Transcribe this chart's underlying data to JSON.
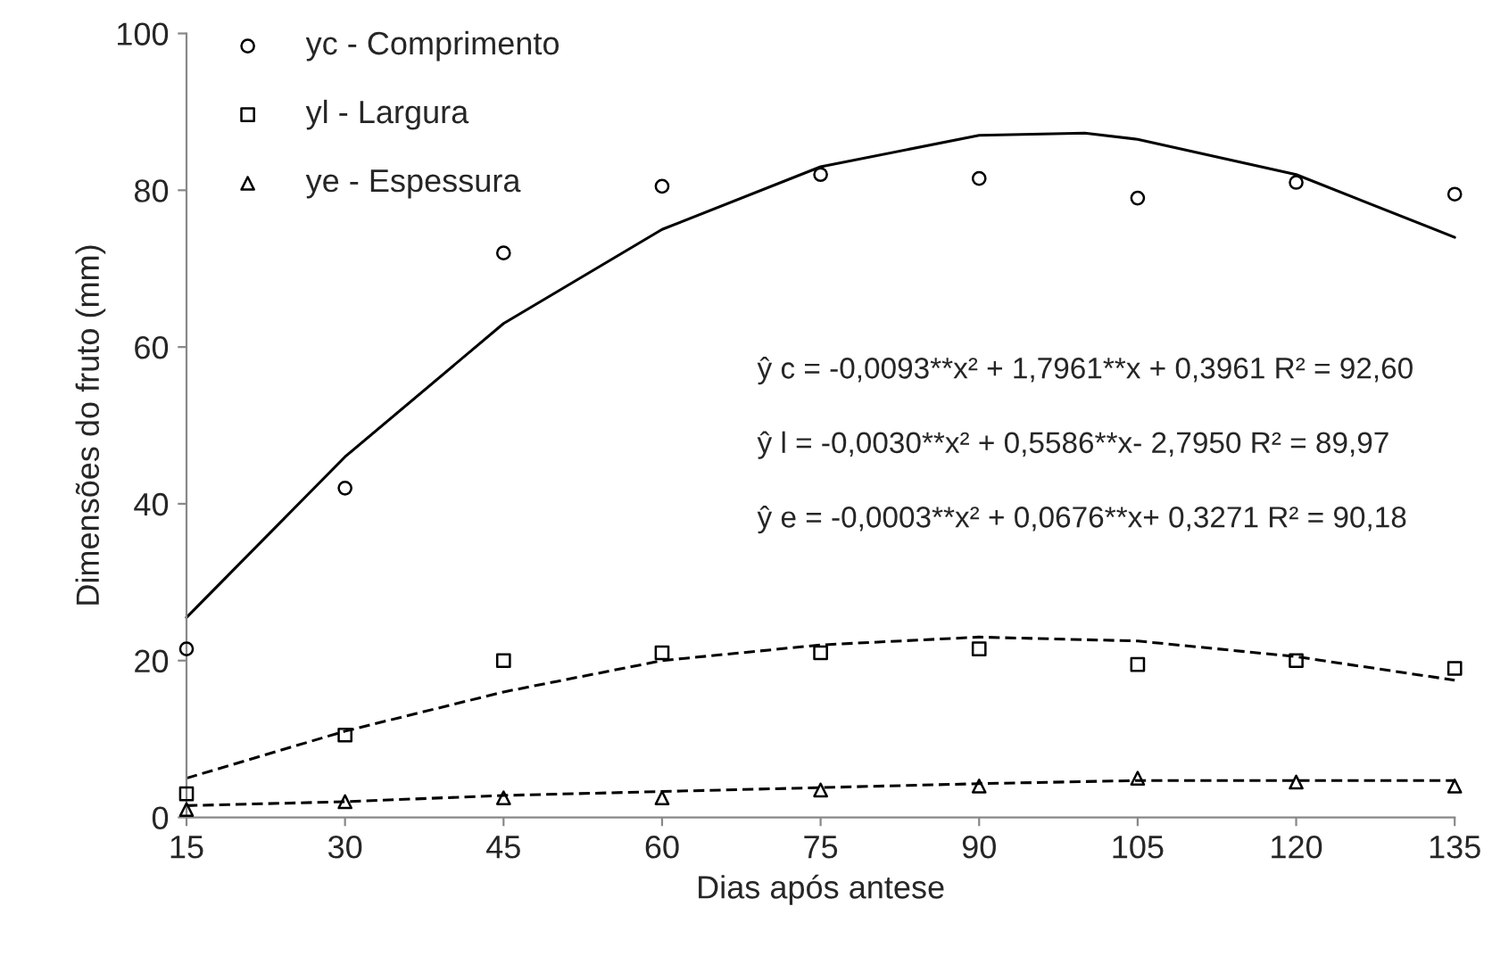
{
  "chart_data": {
    "type": "scatter",
    "xlabel": "Dias após antese",
    "ylabel": "Dimensões do fruto (mm)",
    "x": [
      15,
      30,
      45,
      60,
      75,
      90,
      105,
      120,
      135
    ],
    "series": [
      {
        "name": "yc - Comprimento",
        "marker": "circle",
        "color": "#000000",
        "values": [
          21.5,
          42,
          72,
          80.5,
          82,
          81.5,
          79,
          81,
          79.5
        ]
      },
      {
        "name": "yl - Largura",
        "marker": "square",
        "color": "#000000",
        "values": [
          3,
          10.5,
          20,
          21,
          21,
          21.5,
          19.5,
          20,
          19
        ]
      },
      {
        "name": "ye - Espessura",
        "marker": "triangle",
        "color": "#000000",
        "values": [
          1,
          2,
          2.5,
          2.5,
          3.5,
          4,
          5,
          4.5,
          4
        ]
      },
      {
        "type": "line",
        "line_style": "solid",
        "color": "#000000",
        "x": [
          15,
          30,
          45,
          60,
          75,
          90,
          100,
          105,
          120,
          135
        ],
        "values": [
          25.5,
          46,
          63,
          75,
          83,
          87,
          87.3,
          86.5,
          82,
          74
        ]
      },
      {
        "type": "line",
        "line_style": "dashed",
        "color": "#000000",
        "x": [
          15,
          30,
          45,
          60,
          75,
          90,
          105,
          120,
          135
        ],
        "values": [
          5,
          11,
          16,
          20,
          22,
          23,
          22.5,
          20.5,
          17.5
        ]
      },
      {
        "type": "line",
        "line_style": "dashed",
        "color": "#000000",
        "x": [
          15,
          30,
          45,
          60,
          75,
          90,
          105,
          120,
          135
        ],
        "values": [
          1.5,
          2,
          2.8,
          3.3,
          3.8,
          4.3,
          4.7,
          4.7,
          4.7
        ]
      }
    ],
    "xlim": [
      15,
      135
    ],
    "xticks": [
      15,
      30,
      45,
      60,
      75,
      90,
      105,
      120,
      135
    ],
    "ylim": [
      0,
      100
    ],
    "yticks": [
      0,
      20,
      40,
      60,
      80,
      100
    ],
    "grid": false,
    "legend": "top left",
    "annotations": [
      "ŷ c = -0,0093**x² + 1,7961**x + 0,3961 R² = 92,60",
      "ŷ l = -0,0030**x² + 0,5586**x- 2,7950 R² = 89,97",
      "ŷ e = -0,0003**x² + 0,0676**x+ 0,3271 R² = 90,18"
    ]
  }
}
